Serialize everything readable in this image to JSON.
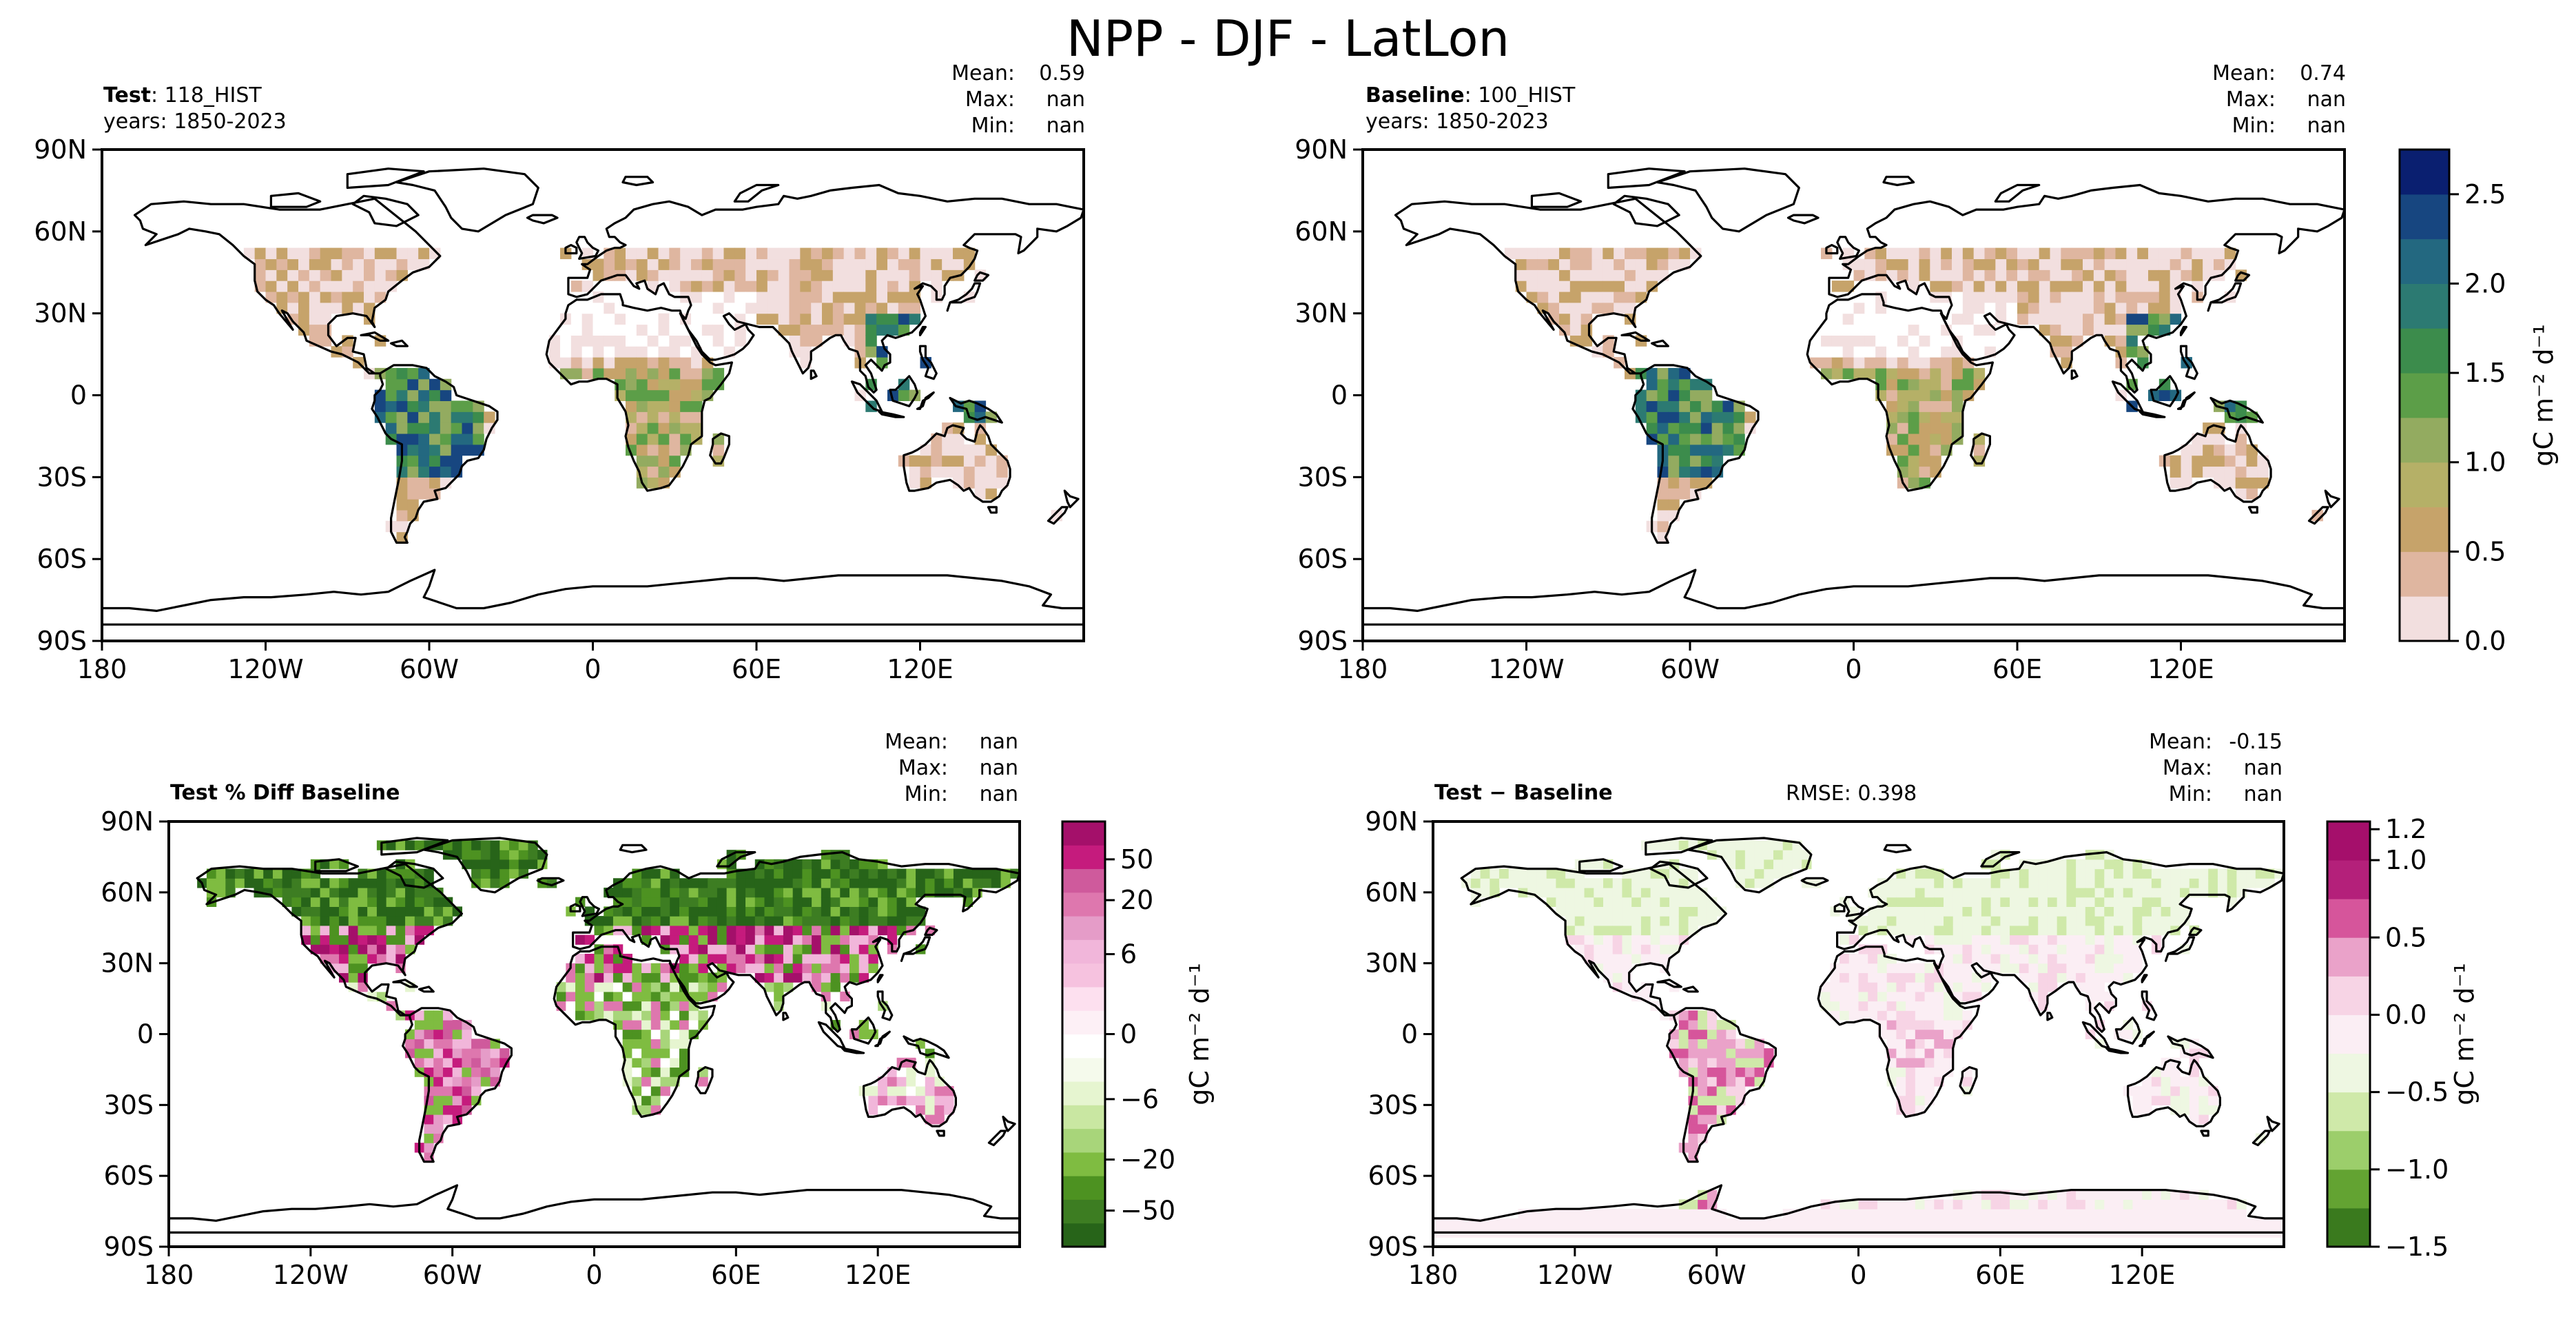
{
  "figure": {
    "title": "NPP - DJF - LatLon"
  },
  "panels": [
    {
      "id": "test",
      "title_bold": "Test",
      "title_rest": ": 118_HIST",
      "years": "years: 1850-2023",
      "stats": {
        "mean_label": "Mean:",
        "mean": "0.59",
        "max_label": "Max:",
        "max": "nan",
        "min_label": "Min:",
        "min": "nan"
      },
      "rmse": ""
    },
    {
      "id": "baseline",
      "title_bold": "Baseline",
      "title_rest": ": 100_HIST",
      "years": "years: 1850-2023",
      "stats": {
        "mean_label": "Mean:",
        "mean": "0.74",
        "max_label": "Max:",
        "max": "nan",
        "min_label": "Min:",
        "min": "nan"
      },
      "rmse": ""
    },
    {
      "id": "pctdiff",
      "title_bold": "Test % Diff Baseline",
      "title_rest": "",
      "years": "",
      "stats": {
        "mean_label": "Mean:",
        "mean": "nan",
        "max_label": "Max:",
        "max": "nan",
        "min_label": "Min:",
        "min": "nan"
      },
      "rmse": ""
    },
    {
      "id": "diff",
      "title_bold": "Test − Baseline",
      "title_rest": "",
      "years": "",
      "stats": {
        "mean_label": "Mean:",
        "mean": "-0.15",
        "max_label": "Max:",
        "max": "nan",
        "min_label": "Min:",
        "min": "nan"
      },
      "rmse": "RMSE: 0.398"
    }
  ],
  "colorbars": [
    {
      "id": "cb-main",
      "label": "gC m⁻² d⁻¹",
      "ticks": [
        "0.0",
        "0.5",
        "1.0",
        "1.5",
        "2.0",
        "2.5"
      ],
      "colors": [
        "#f2dfdf",
        "#dfb6a0",
        "#c6a36a",
        "#b5b067",
        "#93ab60",
        "#5c9e48",
        "#3c8c4c",
        "#2c7a72",
        "#236880",
        "#174680",
        "#0a1f70"
      ]
    },
    {
      "id": "cb-pct",
      "label": "gC m⁻² d⁻¹",
      "ticks": [
        "50",
        "20",
        "6",
        "0",
        "−6",
        "−20",
        "−50"
      ],
      "colors": [
        "#276419",
        "#3d7d22",
        "#4d9221",
        "#7fbc41",
        "#a8d57a",
        "#c9e7a2",
        "#e6f5d0",
        "#f5faec",
        "#ffffff",
        "#fdf0f6",
        "#fde0ef",
        "#f6c2df",
        "#f1b6da",
        "#e59cc8",
        "#de77ae",
        "#cf5a9c",
        "#c51b7d",
        "#a4106a"
      ]
    },
    {
      "id": "cb-diff",
      "label": "gC m⁻² d⁻¹",
      "ticks": [
        "1.2",
        "1.0",
        "0.5",
        "0.0",
        "−0.5",
        "−1.0",
        "−1.5"
      ],
      "colors": [
        "#3a7a1e",
        "#63a332",
        "#9cce6b",
        "#cfe9a9",
        "#eef7e2",
        "#fbeef4",
        "#f7d4e5",
        "#eaa2c9",
        "#d6559b",
        "#b4207a",
        "#a50f6b"
      ]
    }
  ],
  "chart_data": {
    "type": "heatmap",
    "title": "NPP - DJF - LatLon",
    "projection": "PlateCarree",
    "x_ticks": [
      "180",
      "120W",
      "60W",
      "0",
      "60E",
      "120E"
    ],
    "y_ticks": [
      "90N",
      "60N",
      "30N",
      "0",
      "30S",
      "60S",
      "90S"
    ],
    "xlim": [
      -180,
      180
    ],
    "ylim": [
      -90,
      90
    ],
    "grid": false,
    "units": "gC m⁻² d⁻¹",
    "panels": [
      "Test",
      "Baseline",
      "Test % Diff Baseline",
      "Test − Baseline"
    ]
  }
}
